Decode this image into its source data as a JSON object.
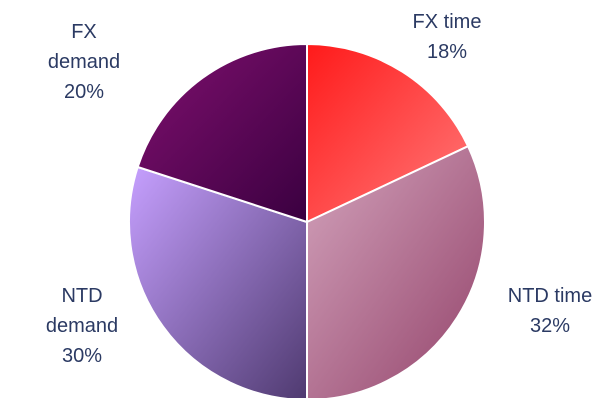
{
  "chart_data": {
    "type": "pie",
    "title": "",
    "slices": [
      {
        "label_lines": [
          "FX time"
        ],
        "value": 18,
        "value_label": "18%",
        "color_light": "#ff7a7a",
        "color_dark": "#ff1a1a"
      },
      {
        "label_lines": [
          "NTD time"
        ],
        "value": 32,
        "value_label": "32%",
        "color_light": "#d3a3bc",
        "color_dark": "#93436a"
      },
      {
        "label_lines": [
          "NTD",
          "demand"
        ],
        "value": 30,
        "value_label": "30%",
        "color_light": "#c6a0ff",
        "color_dark": "#4f3a70"
      },
      {
        "label_lines": [
          "FX",
          "demand"
        ],
        "value": 20,
        "value_label": "20%",
        "color_light": "#80106f",
        "color_dark": "#3a0040"
      }
    ]
  }
}
